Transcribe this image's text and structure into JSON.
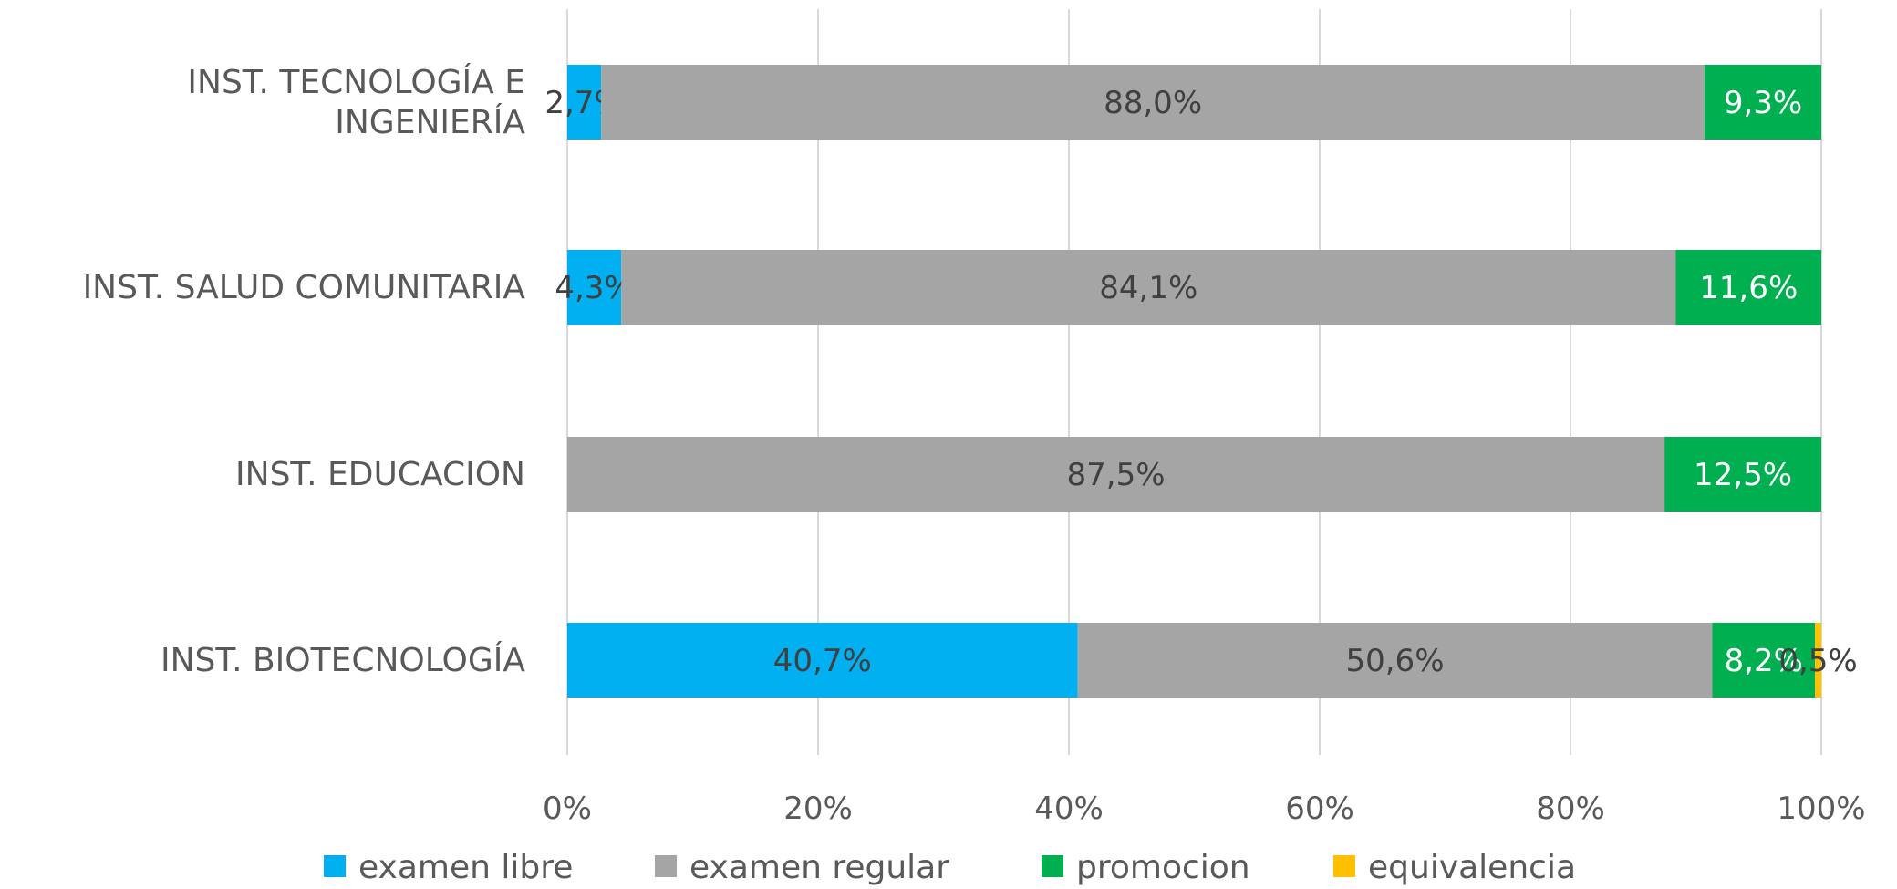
{
  "chart_data": {
    "type": "bar",
    "orientation": "horizontal",
    "stacked": "percent",
    "categories": [
      [
        "INST. TECNOLOGÍA E",
        "INGENIERÍA"
      ],
      [
        "INST. SALUD COMUNITARIA"
      ],
      [
        "INST. EDUCACION"
      ],
      [
        "INST. BIOTECNOLOGÍA"
      ]
    ],
    "series": [
      {
        "name": "examen libre",
        "color": "#00B0F0",
        "label_color": "#404040",
        "values": [
          2.7,
          4.3,
          0,
          40.7
        ],
        "labels": [
          "2,7%",
          "4,3%",
          "",
          "40,7%"
        ]
      },
      {
        "name": "examen regular",
        "color": "#A5A5A5",
        "label_color": "#404040",
        "values": [
          88.0,
          84.1,
          87.5,
          50.6
        ],
        "labels": [
          "88,0%",
          "84,1%",
          "87,5%",
          "50,6%"
        ]
      },
      {
        "name": "promocion",
        "color": "#00B050",
        "label_color": "#ffffff",
        "values": [
          9.3,
          11.6,
          12.5,
          8.2
        ],
        "labels": [
          "9,3%",
          "11,6%",
          "12,5%",
          "8,2%"
        ]
      },
      {
        "name": "equivalencia",
        "color": "#FFC000",
        "label_color": "#404040",
        "values": [
          0,
          0,
          0,
          0.5
        ],
        "labels": [
          "",
          "",
          "",
          "0,5%"
        ]
      }
    ],
    "x_ticks": [
      "0%",
      "20%",
      "40%",
      "60%",
      "80%",
      "100%"
    ],
    "xlim": [
      0,
      100
    ],
    "grid": true,
    "legend_position": "bottom",
    "gridline_color": "#D9D9D9"
  }
}
